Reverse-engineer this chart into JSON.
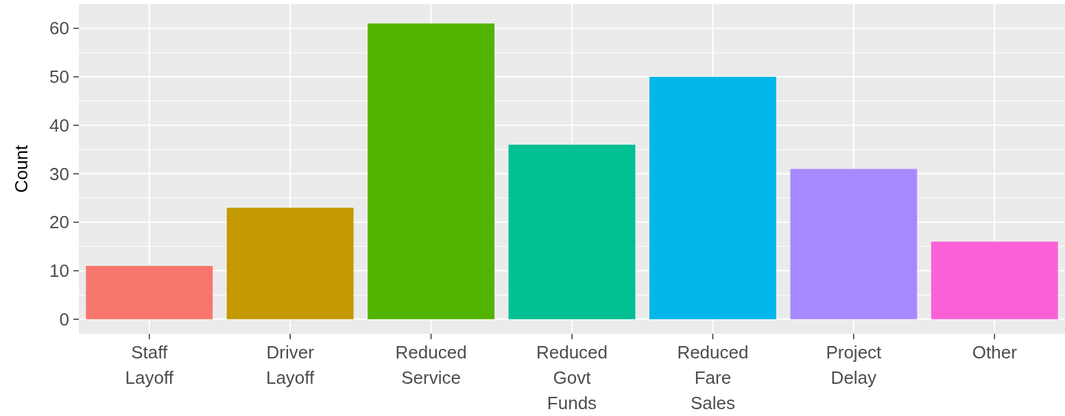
{
  "chart_data": {
    "type": "bar",
    "ylabel": "Count",
    "categories": [
      "Staff Layoff",
      "Driver Layoff",
      "Reduced Service",
      "Reduced Govt Funds",
      "Reduced Fare Sales",
      "Project Delay",
      "Other"
    ],
    "values": [
      11,
      23,
      61,
      36,
      50,
      31,
      16
    ],
    "colors": [
      "#f8766d",
      "#c49a00",
      "#53b400",
      "#00c094",
      "#00b6eb",
      "#a58aff",
      "#fb61d7"
    ],
    "ylim": [
      -3,
      65
    ],
    "yticks": [
      0,
      10,
      20,
      30,
      40,
      50,
      60
    ],
    "grid": true
  }
}
